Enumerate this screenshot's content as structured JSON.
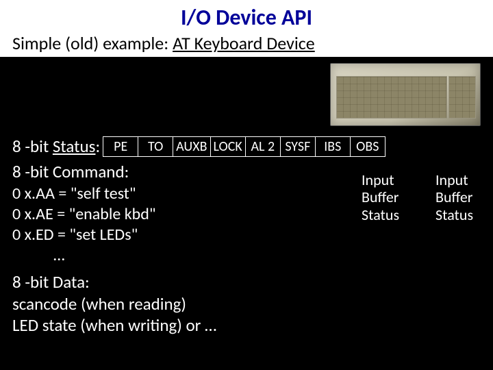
{
  "title": "I/O Device API",
  "subtitle_prefix": "Simple (old) example: ",
  "subtitle_underlined": "AT Keyboard Device",
  "status": {
    "label_prefix": "8 -bit ",
    "label_underlined": "Status",
    "label_suffix": ":",
    "bits": [
      "PE",
      "TO",
      "AUXB",
      "LOCK",
      "AL 2",
      "SYSF",
      "IBS",
      "OBS"
    ]
  },
  "command": {
    "label": "8 -bit Command:",
    "items": [
      "0 x.AA = \"self test\"",
      "0 x.AE = \"enable kbd\"",
      "0 x.ED = \"set LEDs\""
    ],
    "ellipsis": "…"
  },
  "data": {
    "label": "8 -bit Data:",
    "line1": "scancode (when reading)",
    "line2": "LED state (when writing) or …"
  },
  "annotations": {
    "ibs": {
      "l1": "Input",
      "l2": "Buffer",
      "l3": "Status"
    },
    "obs": {
      "l1": "Input",
      "l2": "Buffer",
      "l3": "Status"
    }
  }
}
